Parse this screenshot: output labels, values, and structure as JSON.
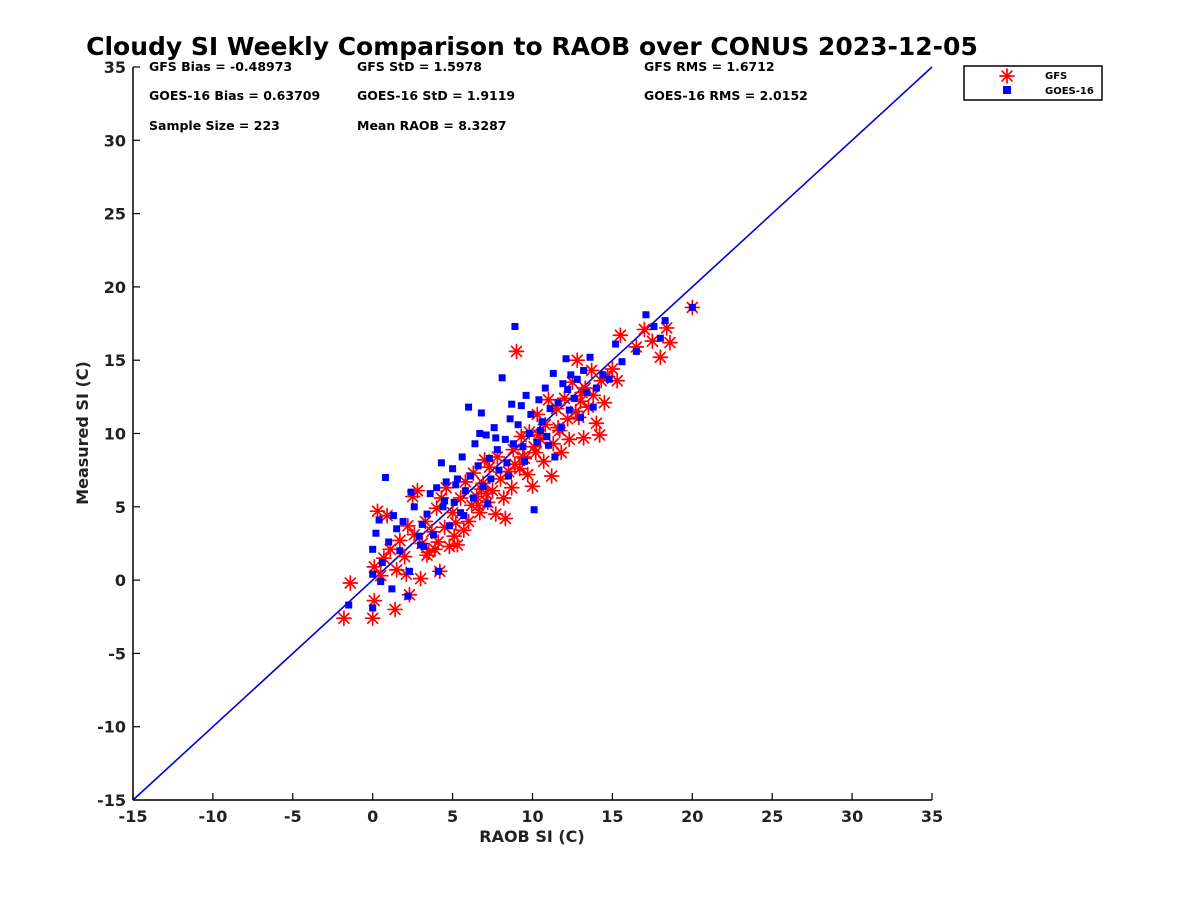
{
  "chart_data": {
    "type": "scatter",
    "title": "Cloudy SI Weekly Comparison to RAOB over CONUS 2023-12-05",
    "xlabel": "RAOB SI (C)",
    "ylabel": "Measured SI (C)",
    "xlim": [
      -15,
      35
    ],
    "ylim": [
      -15,
      35
    ],
    "xticks": [
      "-15",
      "-10",
      "-5",
      "0",
      "5",
      "10",
      "15",
      "20",
      "25",
      "30",
      "35"
    ],
    "yticks": [
      "-15",
      "-10",
      "-5",
      "0",
      "5",
      "10",
      "15",
      "20",
      "25",
      "30",
      "35"
    ],
    "grid": false,
    "legend_position": "outside top-right",
    "reference_line": {
      "from": [
        -15,
        -15
      ],
      "to": [
        35,
        35
      ],
      "color": "#0000dd"
    },
    "stats": [
      {
        "id": "gfs-bias",
        "text": "GFS Bias = -0.48973"
      },
      {
        "id": "gfs-std",
        "text": "GFS StD = 1.5978"
      },
      {
        "id": "gfs-rms",
        "text": "GFS RMS = 1.6712"
      },
      {
        "id": "goes-bias",
        "text": "GOES-16 Bias = 0.63709"
      },
      {
        "id": "goes-std",
        "text": "GOES-16 StD = 1.9119"
      },
      {
        "id": "goes-rms",
        "text": "GOES-16 RMS = 2.0152"
      },
      {
        "id": "sample-size",
        "text": "Sample Size = 223"
      },
      {
        "id": "mean-raob",
        "text": "Mean RAOB = 8.3287"
      }
    ],
    "series": [
      {
        "name": "GFS",
        "marker": "asterisk",
        "color": "#ff0000",
        "points": [
          [
            -1.8,
            -2.6
          ],
          [
            -1.4,
            -0.2
          ],
          [
            0.0,
            -2.6
          ],
          [
            0.1,
            -1.4
          ],
          [
            0.1,
            0.9
          ],
          [
            0.3,
            4.7
          ],
          [
            0.5,
            0.3
          ],
          [
            0.7,
            1.5
          ],
          [
            0.9,
            4.4
          ],
          [
            1.1,
            2.1
          ],
          [
            1.4,
            -2.0
          ],
          [
            1.5,
            0.7
          ],
          [
            1.7,
            2.7
          ],
          [
            2.0,
            1.6
          ],
          [
            2.2,
            3.7
          ],
          [
            2.3,
            -1.0
          ],
          [
            2.5,
            5.7
          ],
          [
            2.6,
            3.1
          ],
          [
            2.8,
            6.1
          ],
          [
            3.0,
            0.1
          ],
          [
            3.1,
            2.5
          ],
          [
            3.3,
            4.0
          ],
          [
            3.5,
            1.9
          ],
          [
            3.7,
            3.3
          ],
          [
            3.9,
            2.1
          ],
          [
            4.0,
            4.9
          ],
          [
            4.2,
            0.6
          ],
          [
            4.3,
            5.6
          ],
          [
            4.5,
            3.6
          ],
          [
            4.6,
            6.3
          ],
          [
            4.8,
            2.3
          ],
          [
            5.0,
            4.6
          ],
          [
            5.2,
            3.9
          ],
          [
            5.3,
            2.4
          ],
          [
            5.5,
            5.6
          ],
          [
            5.7,
            3.4
          ],
          [
            5.8,
            6.7
          ],
          [
            6.0,
            4.0
          ],
          [
            6.2,
            5.1
          ],
          [
            6.3,
            7.3
          ],
          [
            6.5,
            5.7
          ],
          [
            6.7,
            4.6
          ],
          [
            6.8,
            6.2
          ],
          [
            7.0,
            8.2
          ],
          [
            7.2,
            5.3
          ],
          [
            7.3,
            7.7
          ],
          [
            7.5,
            6.1
          ],
          [
            7.7,
            4.5
          ],
          [
            7.8,
            8.4
          ],
          [
            8.0,
            6.9
          ],
          [
            8.2,
            5.6
          ],
          [
            8.3,
            4.2
          ],
          [
            8.5,
            7.4
          ],
          [
            8.7,
            6.3
          ],
          [
            8.8,
            8.9
          ],
          [
            9.0,
            15.6
          ],
          [
            9.2,
            7.6
          ],
          [
            9.3,
            9.8
          ],
          [
            9.5,
            8.3
          ],
          [
            9.7,
            7.2
          ],
          [
            9.8,
            10.1
          ],
          [
            10.0,
            6.4
          ],
          [
            10.2,
            8.7
          ],
          [
            10.3,
            11.3
          ],
          [
            10.5,
            9.6
          ],
          [
            10.7,
            8.1
          ],
          [
            10.8,
            10.6
          ],
          [
            11.0,
            12.3
          ],
          [
            11.2,
            7.1
          ],
          [
            11.3,
            9.3
          ],
          [
            11.5,
            11.7
          ],
          [
            11.7,
            10.2
          ],
          [
            11.8,
            8.7
          ],
          [
            12.0,
            12.4
          ],
          [
            12.2,
            11.0
          ],
          [
            12.3,
            9.6
          ],
          [
            12.5,
            13.5
          ],
          [
            12.7,
            11.5
          ],
          [
            12.8,
            15.0
          ],
          [
            13.0,
            12.2
          ],
          [
            13.2,
            9.7
          ],
          [
            13.3,
            13.1
          ],
          [
            13.5,
            11.8
          ],
          [
            13.7,
            14.3
          ],
          [
            13.8,
            12.6
          ],
          [
            14.0,
            10.7
          ],
          [
            14.2,
            9.9
          ],
          [
            14.3,
            13.6
          ],
          [
            14.5,
            12.1
          ],
          [
            14.7,
            13.9
          ],
          [
            15.0,
            14.4
          ],
          [
            15.3,
            13.6
          ],
          [
            15.5,
            16.7
          ],
          [
            16.5,
            15.9
          ],
          [
            17.0,
            17.1
          ],
          [
            17.5,
            16.3
          ],
          [
            18.0,
            15.2
          ],
          [
            18.4,
            17.2
          ],
          [
            18.6,
            16.2
          ],
          [
            20.0,
            18.6
          ],
          [
            4.1,
            2.6
          ],
          [
            3.4,
            1.7
          ],
          [
            6.6,
            5.1
          ],
          [
            8.9,
            7.9
          ],
          [
            10.1,
            9.1
          ],
          [
            11.6,
            10.4
          ],
          [
            5.1,
            3.0
          ],
          [
            7.1,
            5.9
          ],
          [
            9.4,
            8.4
          ],
          [
            12.9,
            11.1
          ],
          [
            2.1,
            0.4
          ],
          [
            6.9,
            6.6
          ],
          [
            10.4,
            9.9
          ],
          [
            13.1,
            12.8
          ]
        ]
      },
      {
        "name": "GOES-16",
        "marker": "square",
        "color": "#0000ff",
        "points": [
          [
            -1.5,
            -1.7
          ],
          [
            0.0,
            -1.9
          ],
          [
            0.0,
            0.4
          ],
          [
            0.0,
            2.1
          ],
          [
            0.2,
            3.2
          ],
          [
            0.4,
            4.1
          ],
          [
            0.6,
            1.2
          ],
          [
            0.8,
            7.0
          ],
          [
            1.0,
            2.6
          ],
          [
            1.2,
            -0.6
          ],
          [
            1.3,
            4.4
          ],
          [
            1.5,
            3.5
          ],
          [
            1.7,
            2.0
          ],
          [
            1.9,
            4.0
          ],
          [
            2.2,
            -1.1
          ],
          [
            2.3,
            0.6
          ],
          [
            2.4,
            6.0
          ],
          [
            2.6,
            5.0
          ],
          [
            2.9,
            3.0
          ],
          [
            3.1,
            3.8
          ],
          [
            3.2,
            2.3
          ],
          [
            3.4,
            4.5
          ],
          [
            3.6,
            5.9
          ],
          [
            3.8,
            3.1
          ],
          [
            4.0,
            6.3
          ],
          [
            4.1,
            0.6
          ],
          [
            4.3,
            8.0
          ],
          [
            4.4,
            5.0
          ],
          [
            4.6,
            6.7
          ],
          [
            4.8,
            3.7
          ],
          [
            5.0,
            7.6
          ],
          [
            5.1,
            5.3
          ],
          [
            5.3,
            6.9
          ],
          [
            5.5,
            4.6
          ],
          [
            5.6,
            8.4
          ],
          [
            5.8,
            6.1
          ],
          [
            6.0,
            11.8
          ],
          [
            6.1,
            7.1
          ],
          [
            6.3,
            5.6
          ],
          [
            6.4,
            9.3
          ],
          [
            6.6,
            7.8
          ],
          [
            6.8,
            11.4
          ],
          [
            6.9,
            6.4
          ],
          [
            7.1,
            9.9
          ],
          [
            7.3,
            8.3
          ],
          [
            7.4,
            6.9
          ],
          [
            7.6,
            10.4
          ],
          [
            7.8,
            8.9
          ],
          [
            7.9,
            7.5
          ],
          [
            8.1,
            13.8
          ],
          [
            8.3,
            9.6
          ],
          [
            8.4,
            8.0
          ],
          [
            8.6,
            11.0
          ],
          [
            8.8,
            9.3
          ],
          [
            8.9,
            17.3
          ],
          [
            9.1,
            10.6
          ],
          [
            9.3,
            11.9
          ],
          [
            9.4,
            9.1
          ],
          [
            9.6,
            12.6
          ],
          [
            9.8,
            10.0
          ],
          [
            9.9,
            11.3
          ],
          [
            10.1,
            4.8
          ],
          [
            10.3,
            9.4
          ],
          [
            10.4,
            12.3
          ],
          [
            10.6,
            10.8
          ],
          [
            10.8,
            13.1
          ],
          [
            10.9,
            9.8
          ],
          [
            11.1,
            11.7
          ],
          [
            11.3,
            14.1
          ],
          [
            11.4,
            8.4
          ],
          [
            11.6,
            12.1
          ],
          [
            11.8,
            10.4
          ],
          [
            11.9,
            13.4
          ],
          [
            12.1,
            15.1
          ],
          [
            12.3,
            11.6
          ],
          [
            12.4,
            14.0
          ],
          [
            12.6,
            12.4
          ],
          [
            12.8,
            13.7
          ],
          [
            13.0,
            11.1
          ],
          [
            13.2,
            14.3
          ],
          [
            13.4,
            12.8
          ],
          [
            13.6,
            15.2
          ],
          [
            13.8,
            11.8
          ],
          [
            14.0,
            13.1
          ],
          [
            14.4,
            14.0
          ],
          [
            14.8,
            13.7
          ],
          [
            15.2,
            16.1
          ],
          [
            15.6,
            14.9
          ],
          [
            16.5,
            15.6
          ],
          [
            17.1,
            18.1
          ],
          [
            17.6,
            17.3
          ],
          [
            18.0,
            16.5
          ],
          [
            18.3,
            17.7
          ],
          [
            20.0,
            18.6
          ],
          [
            0.5,
            -0.1
          ],
          [
            3.0,
            2.4
          ],
          [
            5.7,
            4.4
          ],
          [
            7.2,
            5.2
          ],
          [
            8.5,
            7.1
          ],
          [
            9.5,
            8.1
          ],
          [
            10.5,
            10.2
          ],
          [
            6.7,
            10.0
          ],
          [
            5.2,
            6.5
          ],
          [
            8.7,
            12.0
          ],
          [
            11.0,
            9.2
          ],
          [
            12.2,
            13.0
          ],
          [
            4.5,
            5.4
          ],
          [
            7.7,
            9.7
          ]
        ]
      }
    ]
  }
}
